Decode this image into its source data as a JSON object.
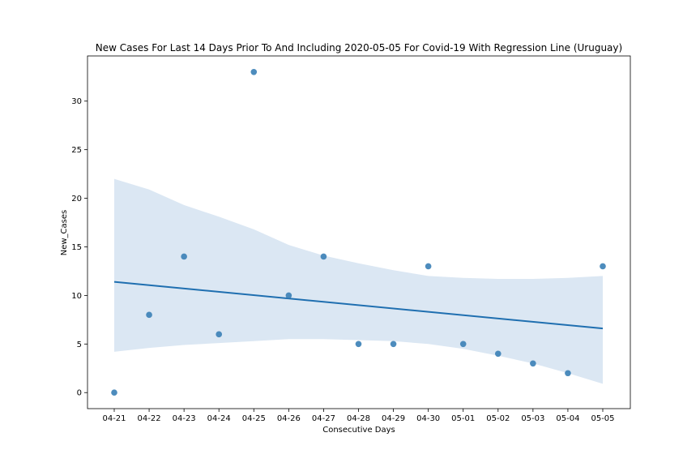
{
  "chart_data": {
    "type": "scatter",
    "title": "New Cases For Last 14 Days Prior To And Including 2020-05-05 For Covid-19 With Regression Line (Uruguay)",
    "xlabel": "Consecutive Days",
    "ylabel": "New_Cases",
    "categories": [
      "04-21",
      "04-22",
      "04-23",
      "04-24",
      "04-25",
      "04-26",
      "04-27",
      "04-28",
      "04-29",
      "04-30",
      "05-01",
      "05-02",
      "05-03",
      "05-04",
      "05-05"
    ],
    "values": [
      0,
      8,
      14,
      6,
      33,
      10,
      14,
      5,
      5,
      13,
      5,
      4,
      3,
      2,
      13
    ],
    "regression": {
      "start": 11.4,
      "end": 6.6
    },
    "confidence_band": {
      "upper": [
        22.0,
        20.9,
        19.3,
        18.1,
        16.8,
        15.2,
        14.1,
        13.3,
        12.6,
        12.0,
        11.8,
        11.7,
        11.7,
        11.8,
        12.0
      ],
      "lower": [
        4.2,
        4.6,
        4.9,
        5.1,
        5.3,
        5.5,
        5.5,
        5.4,
        5.3,
        5.0,
        4.5,
        3.8,
        3.0,
        2.0,
        0.9
      ]
    },
    "yticks": [
      0,
      5,
      10,
      15,
      20,
      25,
      30
    ],
    "ylim": [
      -1.65,
      34.65
    ],
    "grid": false,
    "colors": {
      "points": "#3a7fb6",
      "line": "#1f6fb0",
      "band": "#dbe7f3"
    }
  }
}
